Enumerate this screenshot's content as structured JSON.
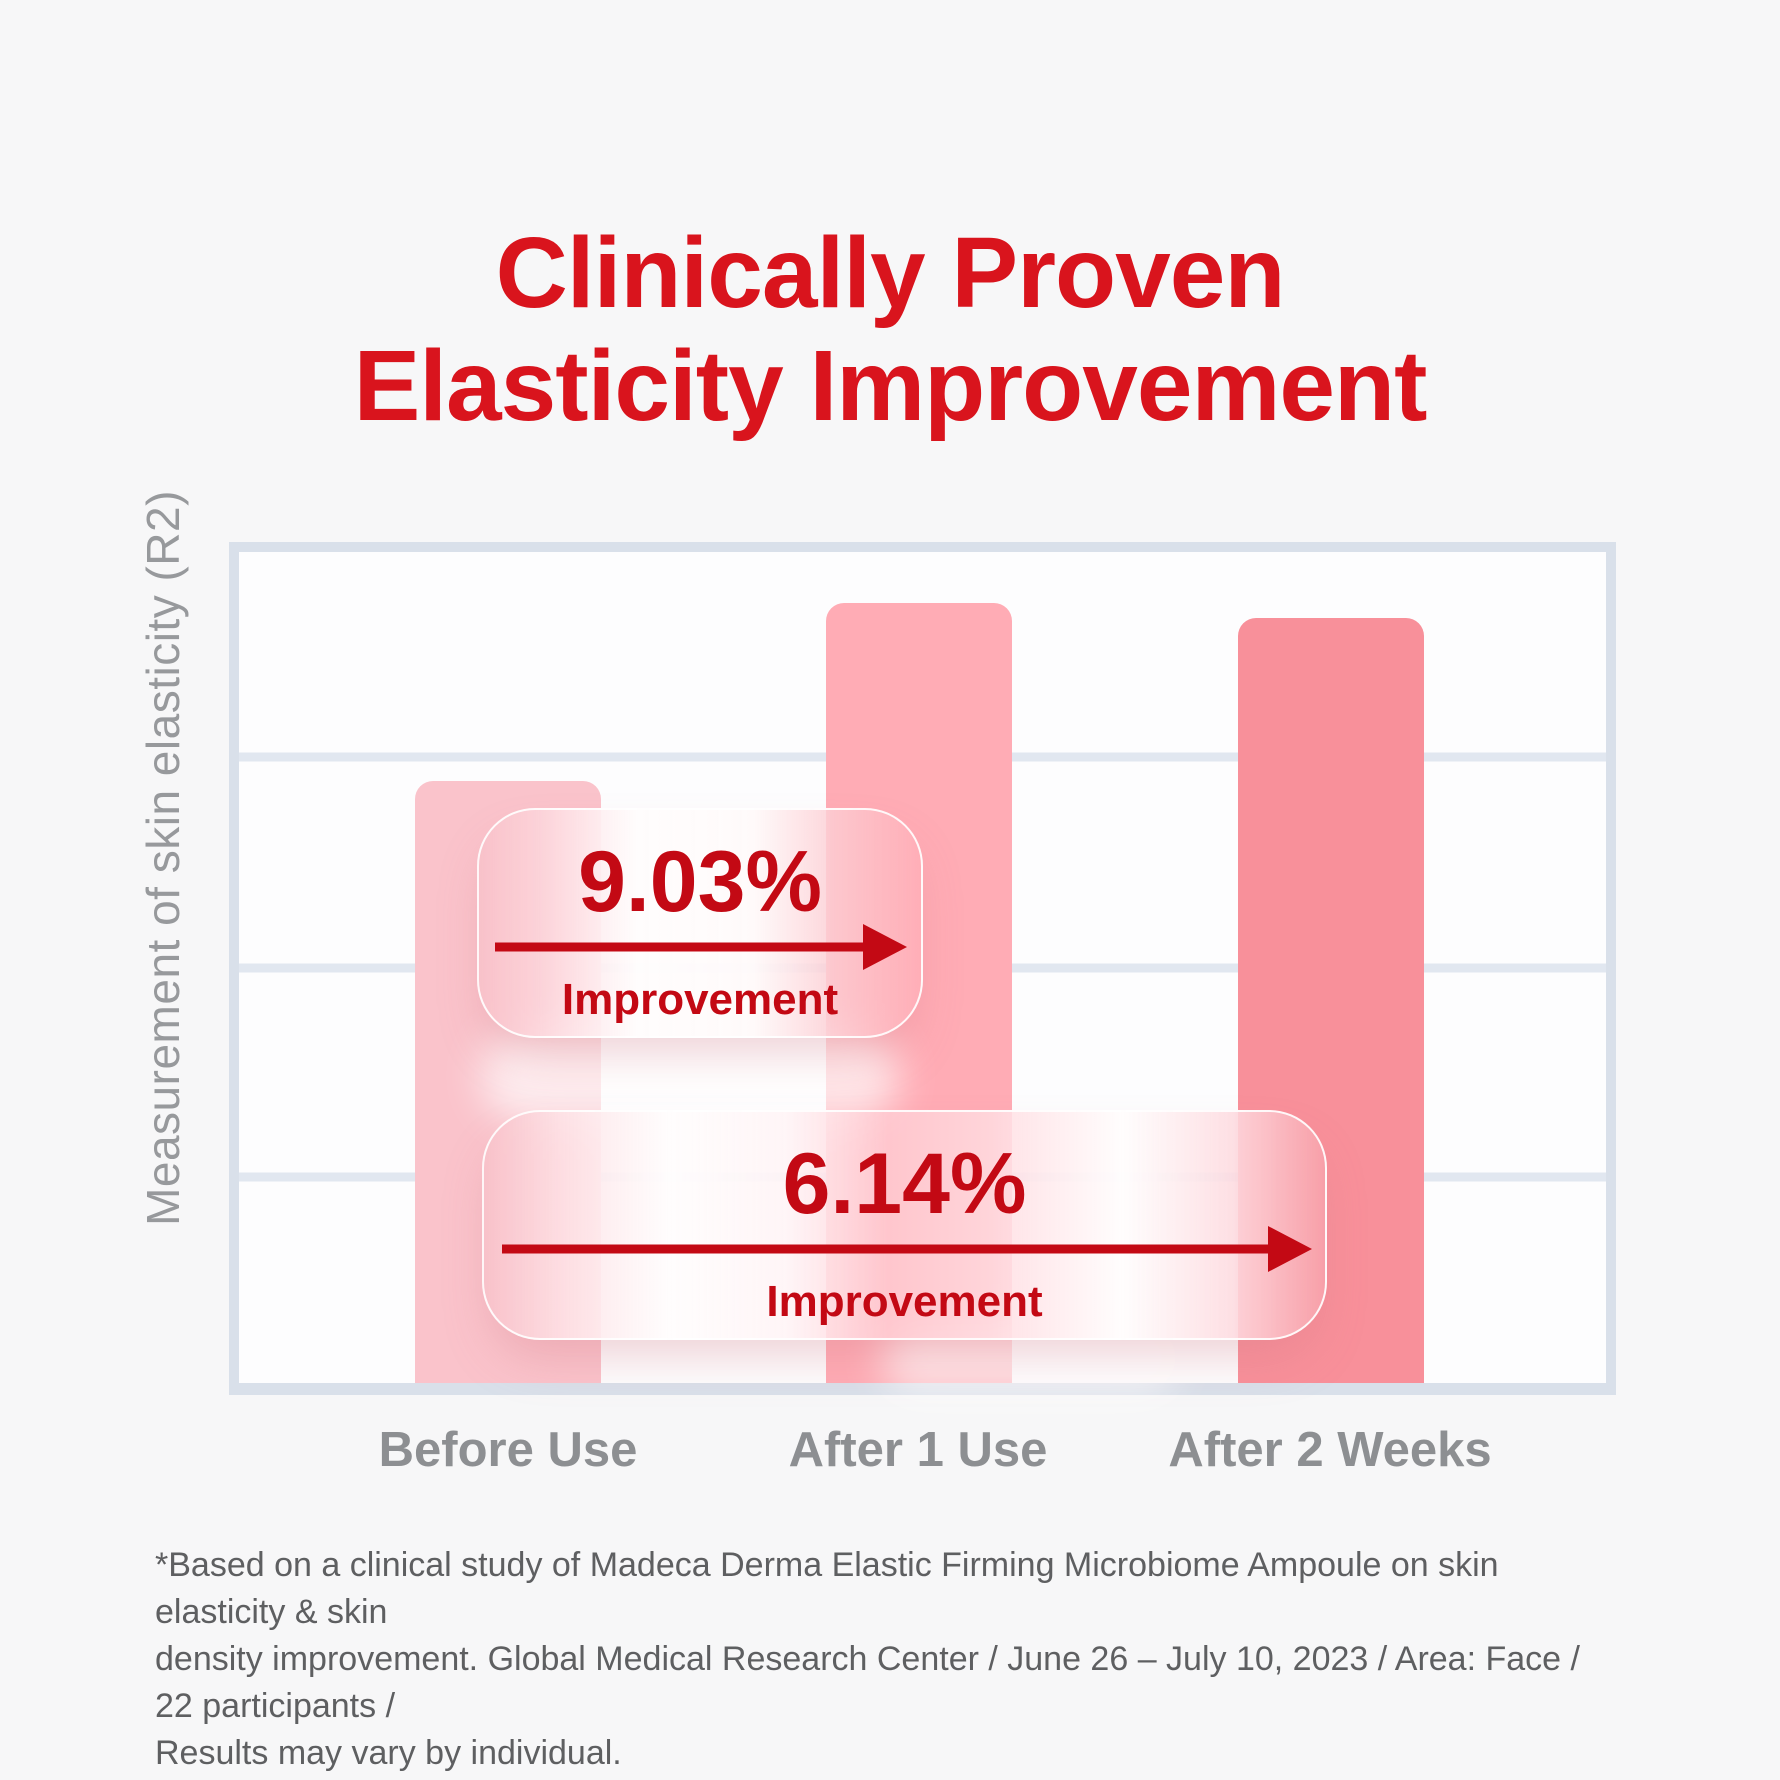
{
  "page": {
    "background": "#F7F7F8"
  },
  "title": {
    "line1": "Clinically Proven",
    "line2": "Elasticity Improvement"
  },
  "chart_data": {
    "type": "bar",
    "title": "Clinically Proven Elasticity Improvement",
    "ylabel": "Measurement of skin elasticity (R2)",
    "xlabel": "",
    "categories": [
      "Before Use",
      "After 1 Use",
      "After 2 Weeks"
    ],
    "values_relative_height_pct": [
      72.4,
      93.9,
      92.1
    ],
    "bar_colors": [
      "#FAC3CB",
      "#FFACB5",
      "#F8909A"
    ],
    "y_axis_tick_labels": [],
    "gridline_rows": 4,
    "grid": true,
    "legend": false,
    "annotations": [
      {
        "value": "9.03%",
        "label": "Improvement",
        "span": [
          "Before Use",
          "After 1 Use"
        ]
      },
      {
        "value": "6.14%",
        "label": "Improvement",
        "span": [
          "Before Use",
          "After 2 Weeks"
        ]
      }
    ]
  },
  "badges": [
    {
      "value": "9.03%",
      "label": "Improvement"
    },
    {
      "value": "6.14%",
      "label": "Improvement"
    }
  ],
  "footnote": {
    "lines": [
      "*Based on a clinical study of Madeca Derma Elastic Firming Microbiome Ampoule on skin elasticity & skin",
      "density improvement. Global Medical Research Center / June 26 – July 10, 2023 / Area: Face / 22 participants /",
      "Results may vary by individual."
    ]
  },
  "colors": {
    "title_red": "#D9141D",
    "accent_red": "#C30914",
    "axis_gray": "#D9E0EA",
    "label_gray": "#8D8F92",
    "footnote_gray": "#5E5F61"
  }
}
